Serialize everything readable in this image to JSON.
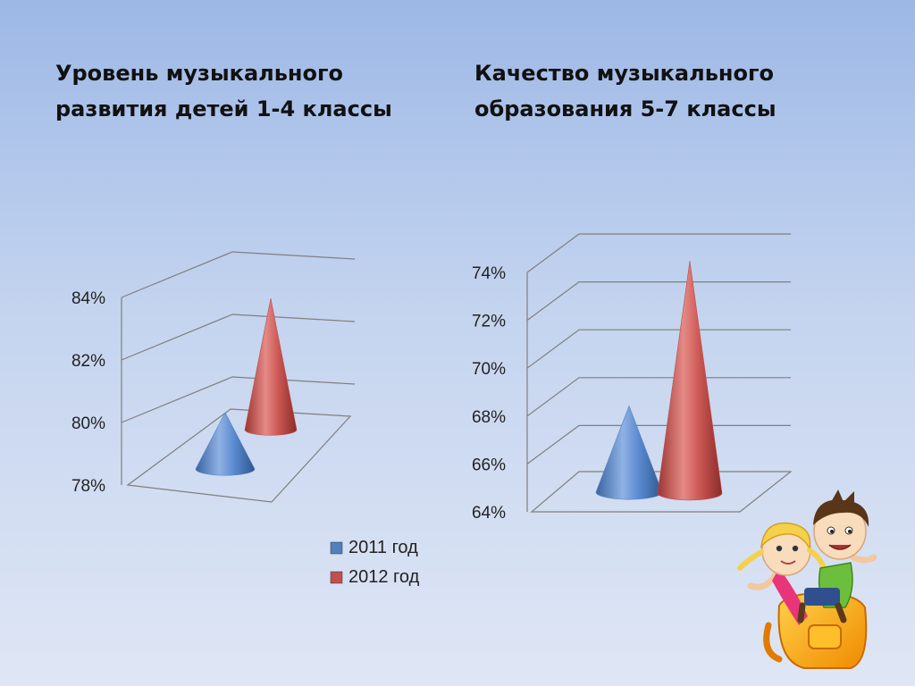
{
  "titles": {
    "left": [
      "Уровень музыкального",
      "развития  детей 1-4 классы"
    ],
    "right": [
      "Качество музыкального",
      "образования 5-7 классы"
    ]
  },
  "legend": {
    "entries": [
      {
        "label": "2011 год",
        "color": "#4f81bd"
      },
      {
        "label": "2012 год",
        "color": "#c0504d"
      }
    ],
    "placement": "below-left-chart"
  },
  "chart_data": [
    {
      "type": "bar",
      "style": "3d-cone",
      "categories": [
        "2011 год",
        "2012 год"
      ],
      "values": [
        79.8,
        82.2
      ],
      "ylim": [
        78,
        84
      ],
      "yticks": [
        "78%",
        "80%",
        "82%",
        "84%"
      ],
      "grid": true
    },
    {
      "type": "bar",
      "style": "3d-cone",
      "categories": [
        "2011 год",
        "2012 год"
      ],
      "values": [
        67.6,
        73.7
      ],
      "ylim": [
        64,
        74
      ],
      "yticks": [
        "64%",
        "66%",
        "68%",
        "70%",
        "72%",
        "74%"
      ],
      "grid": true
    }
  ],
  "colors": {
    "blue": "#4f81bd",
    "red": "#c0504d",
    "grid": "#7f7f7f"
  },
  "decor": {
    "illustration": "kids-on-backpack"
  }
}
